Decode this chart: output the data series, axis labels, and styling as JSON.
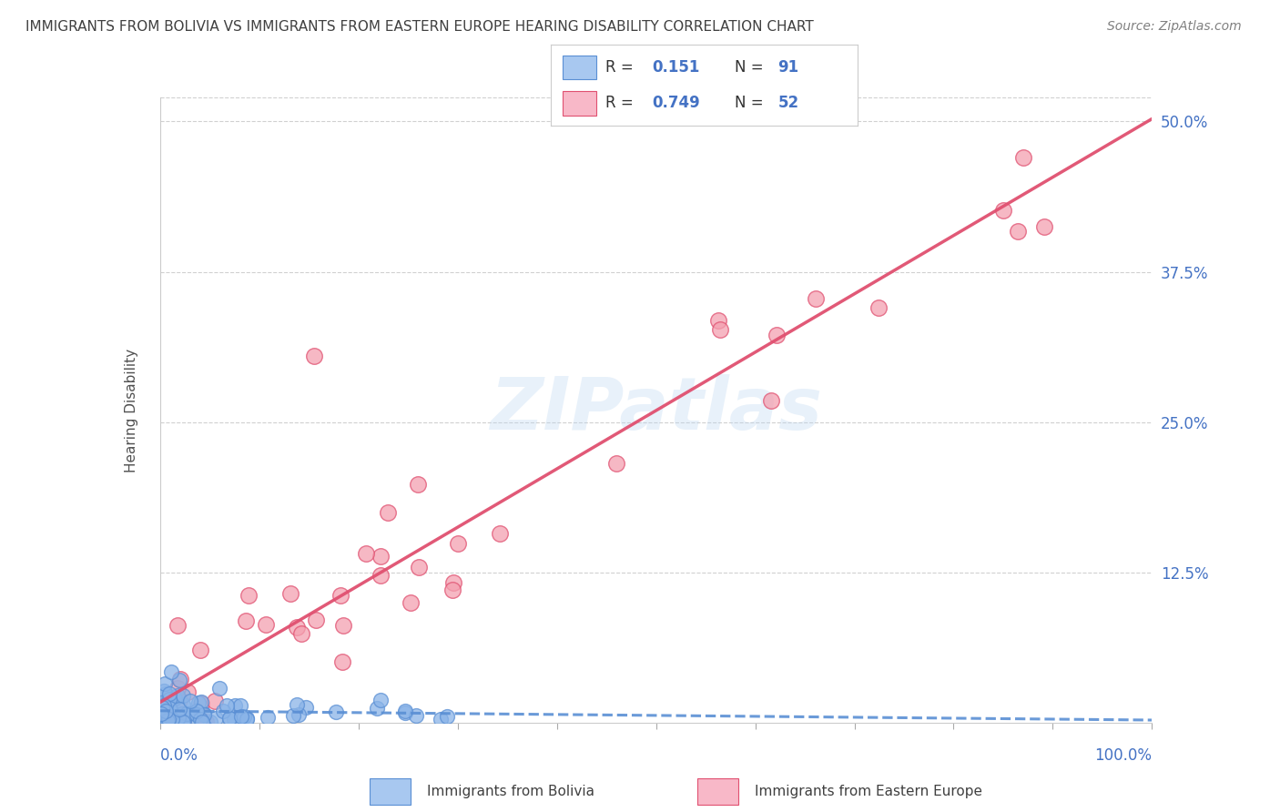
{
  "title": "IMMIGRANTS FROM BOLIVIA VS IMMIGRANTS FROM EASTERN EUROPE HEARING DISABILITY CORRELATION CHART",
  "source": "Source: ZipAtlas.com",
  "ylabel": "Hearing Disability",
  "yticks": [
    0.0,
    0.125,
    0.25,
    0.375,
    0.5
  ],
  "ytick_labels": [
    "",
    "12.5%",
    "25.0%",
    "37.5%",
    "50.0%"
  ],
  "xticks": [
    0.0,
    0.1,
    0.2,
    0.3,
    0.4,
    0.5,
    0.6,
    0.7,
    0.8,
    0.9,
    1.0
  ],
  "xlim": [
    0.0,
    1.0
  ],
  "ylim": [
    0.0,
    0.52
  ],
  "bolivia_color": "#8ab4e8",
  "bolivia_edge_color": "#5a8fd4",
  "eastern_europe_color": "#f4a0b0",
  "eastern_europe_edge_color": "#e05070",
  "bolivia_R": 0.151,
  "bolivia_N": 91,
  "eastern_europe_R": 0.749,
  "eastern_europe_N": 52,
  "watermark": "ZIPatlas",
  "legend_color_bolivia": "#a8c8f0",
  "legend_color_eastern": "#f8b8c8",
  "legend_text_color": "#4472c4",
  "grid_color": "#d0d0d0",
  "title_color": "#404040",
  "axis_label_color": "#4472c4",
  "background_color": "#ffffff"
}
